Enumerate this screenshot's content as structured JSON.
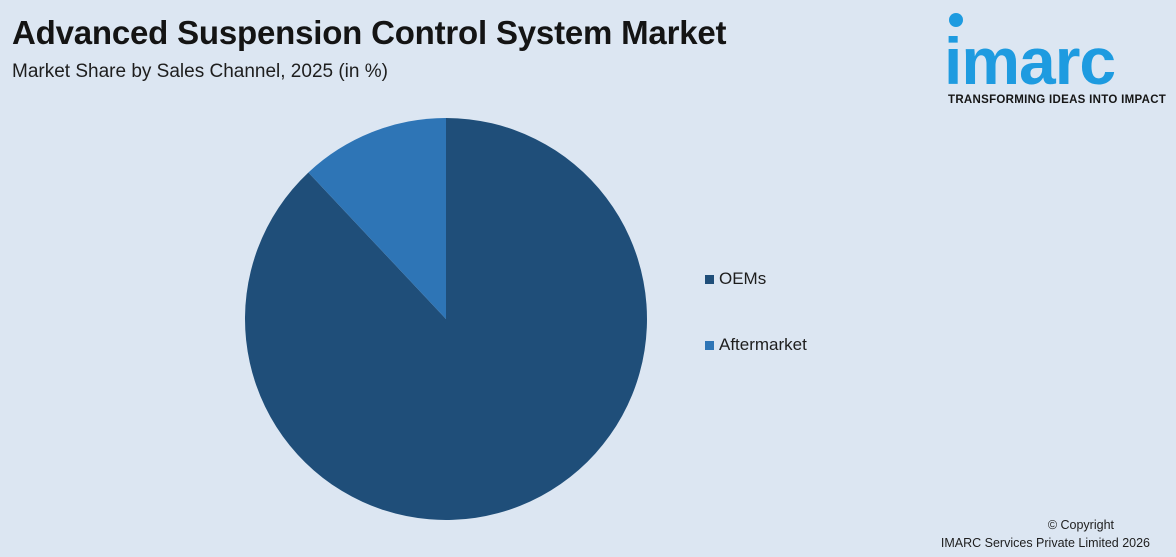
{
  "header": {
    "title": "Advanced Suspension Control System Market",
    "subtitle": "Market Share by Sales Channel, 2025 (in %)"
  },
  "logo": {
    "word": "imarc",
    "tagline": "TRANSFORMING IDEAS INTO IMPACT",
    "color": "#1e9be0"
  },
  "chart_data": {
    "type": "pie",
    "title": "Advanced Suspension Control System Market",
    "subtitle": "Market Share by Sales Channel, 2025 (in %)",
    "start_angle_deg": 0,
    "direction": "clockwise",
    "slices": [
      {
        "label": "OEMs",
        "value": 88,
        "color": "#1f4e79"
      },
      {
        "label": "Aftermarket",
        "value": 12,
        "color": "#2e75b6"
      }
    ],
    "legend_position": "right"
  },
  "footer": {
    "copyright_line1": "© Copyright",
    "copyright_line2": "IMARC Services Private Limited 2026"
  }
}
